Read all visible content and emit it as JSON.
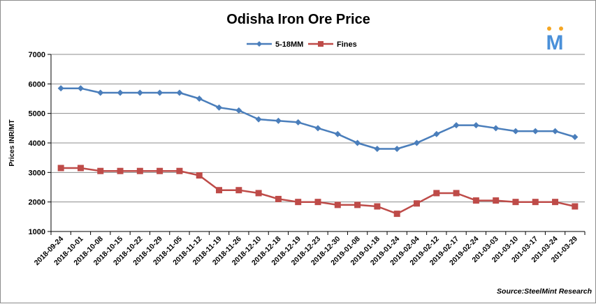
{
  "chart_data": {
    "type": "line",
    "title": "Odisha Iron Ore Price",
    "ylabel": "Prices INR/MT",
    "xlabel": "",
    "ylim": [
      1000,
      7000
    ],
    "yticks": [
      1000,
      2000,
      3000,
      4000,
      5000,
      6000,
      7000
    ],
    "grid": "horizontal",
    "legend_position": "top",
    "categories": [
      "2018-09-24",
      "2018-10-01",
      "2018-10-08",
      "2018-10-15",
      "2018-10-22",
      "2018-10-29",
      "2018-11-05",
      "2018-11-12",
      "2018-11-19",
      "2018-11-26",
      "2018-12-10",
      "2018-12-18",
      "2018-12-19",
      "2018-12-23",
      "2018-12-30",
      "2019-01-08",
      "2019-01-18",
      "2019-01-24",
      "2019-02-04",
      "2019-02-12",
      "2019-02-17",
      "2019-02-24",
      "201-03-03",
      "201-03-10",
      "201-03-17",
      "201-03-24",
      "201-03-29"
    ],
    "series": [
      {
        "name": "5-18MM",
        "color": "#4a7ebb",
        "marker": "diamond",
        "values": [
          5850,
          5850,
          5700,
          5700,
          5700,
          5700,
          5700,
          5500,
          5200,
          5100,
          4800,
          4750,
          4700,
          4500,
          4300,
          4000,
          3800,
          3800,
          4000,
          4300,
          4600,
          4600,
          4500,
          4400,
          4400,
          4400,
          4200
        ]
      },
      {
        "name": "Fines",
        "color": "#be4b48",
        "marker": "square",
        "values": [
          3150,
          3150,
          3050,
          3050,
          3050,
          3050,
          3050,
          2900,
          2400,
          2400,
          2300,
          2100,
          2000,
          2000,
          1900,
          1900,
          1850,
          1600,
          1950,
          2300,
          2300,
          2050,
          2050,
          2000,
          2000,
          2000,
          1850
        ]
      }
    ],
    "source": "Source:SteelMint Research"
  },
  "logo": {
    "text": "M",
    "color": "#4a90d9",
    "dot_color": "#f5a623"
  }
}
